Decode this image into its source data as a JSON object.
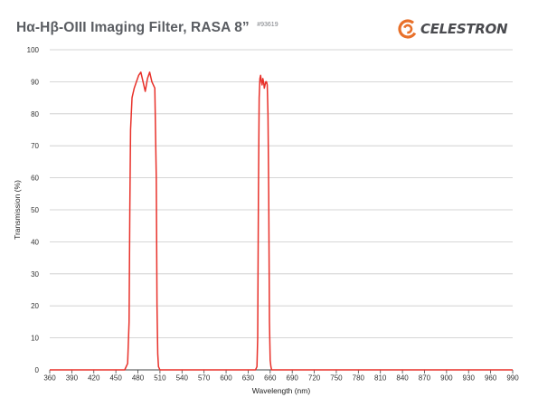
{
  "header": {
    "title": "Hα-Hβ-OIII Imaging Filter, RASA 8”",
    "part_number": "#93619",
    "logo_text": "CELESTRON",
    "logo_color": "#e8702a"
  },
  "chart_data": {
    "type": "line",
    "title": "Hα-Hβ-OIII Imaging Filter, RASA 8”",
    "xlabel": "Wavelength (nm)",
    "ylabel": "Transmission (%)",
    "xlim": [
      360,
      990
    ],
    "ylim": [
      0,
      100
    ],
    "xticks": [
      360,
      390,
      420,
      450,
      480,
      510,
      540,
      570,
      600,
      630,
      660,
      690,
      720,
      750,
      780,
      810,
      840,
      870,
      900,
      930,
      960,
      990
    ],
    "yticks": [
      0,
      10,
      20,
      30,
      40,
      50,
      60,
      70,
      80,
      90,
      100
    ],
    "grid": "horizontal",
    "line_color": "#e8312a",
    "series": [
      {
        "x": [
          360,
          462,
          466,
          468,
          469,
          470,
          472,
          475,
          478,
          481,
          484,
          487,
          490,
          493,
          496,
          499,
          501,
          503,
          505,
          506,
          507,
          508,
          510,
          513,
          516,
          640,
          642,
          643,
          644,
          645,
          646,
          647,
          648,
          649,
          650,
          651,
          652,
          653,
          654,
          655,
          656,
          657,
          658,
          659,
          660,
          661,
          662,
          664,
          990
        ],
        "y": [
          0,
          0,
          2,
          15,
          50,
          75,
          85,
          88,
          90,
          92,
          93,
          90,
          87,
          91,
          93,
          90,
          89,
          88,
          60,
          20,
          5,
          1,
          0,
          0,
          0,
          0,
          1,
          10,
          55,
          85,
          91,
          92,
          90,
          89,
          91,
          90,
          88,
          89,
          90,
          90,
          89,
          80,
          55,
          15,
          3,
          1,
          0,
          0,
          0
        ]
      }
    ]
  }
}
